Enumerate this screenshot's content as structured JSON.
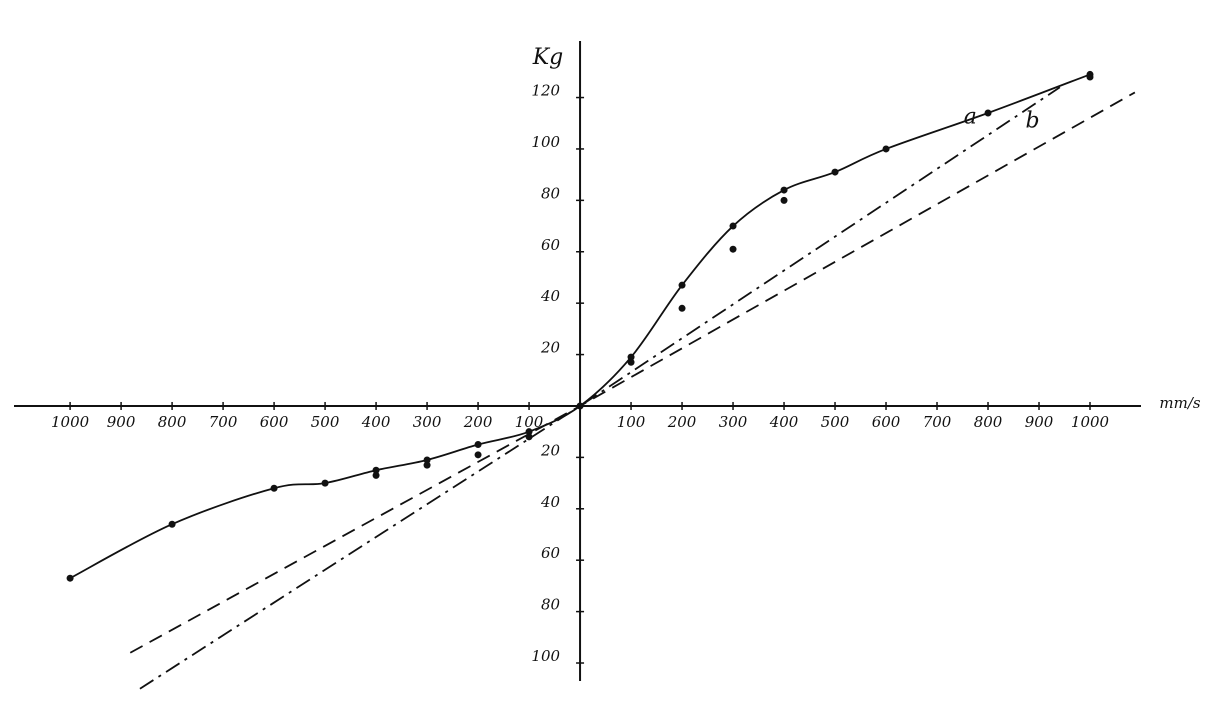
{
  "chart_data": {
    "type": "line",
    "x_label": "mm/s",
    "y_label": "Kg",
    "xlim": [
      -1110,
      1100
    ],
    "ylim": [
      -107,
      142
    ],
    "xticks": [
      {
        "value": -1000,
        "label": "1000"
      },
      {
        "value": -900,
        "label": "900"
      },
      {
        "value": -800,
        "label": "800"
      },
      {
        "value": -700,
        "label": "700"
      },
      {
        "value": -600,
        "label": "600"
      },
      {
        "value": -500,
        "label": "500"
      },
      {
        "value": -400,
        "label": "400"
      },
      {
        "value": -300,
        "label": "300"
      },
      {
        "value": -200,
        "label": "200"
      },
      {
        "value": -100,
        "label": "100"
      },
      100,
      200,
      300,
      400,
      500,
      600,
      700,
      800,
      900,
      1000
    ],
    "yticks": [
      {
        "value": -100,
        "label": "100"
      },
      {
        "value": -80,
        "label": "80"
      },
      {
        "value": -60,
        "label": "60"
      },
      {
        "value": -40,
        "label": "40"
      },
      {
        "value": -20,
        "label": "20"
      },
      20,
      40,
      60,
      80,
      100,
      120
    ],
    "series": [
      {
        "style": "solid",
        "color": "#111111",
        "x": [
          -1000,
          -800,
          -600,
          -500,
          -400,
          -300,
          -200,
          -100,
          0,
          100,
          200,
          300,
          400,
          500,
          600,
          800,
          1000
        ],
        "values": [
          -67,
          -46,
          -32,
          -30,
          -25,
          -21,
          -15,
          -10,
          0,
          19,
          47,
          70,
          84,
          91,
          100,
          114,
          129
        ]
      },
      {
        "style": "markers",
        "color": "#111111",
        "x": [
          -400,
          -300,
          -200,
          -100,
          100,
          200,
          300,
          400,
          1000
        ],
        "values": [
          -27,
          -23,
          -19,
          -12,
          17,
          38,
          61,
          80,
          128
        ]
      },
      {
        "name": "a",
        "style": "dashdot",
        "color": "#111111",
        "x": [
          -863,
          0,
          941
        ],
        "values": [
          -110,
          0,
          124
        ]
      },
      {
        "name": "b",
        "style": "dashed",
        "color": "#111111",
        "x": [
          -882,
          0,
          1088
        ],
        "values": [
          -96,
          0,
          122
        ]
      }
    ]
  }
}
